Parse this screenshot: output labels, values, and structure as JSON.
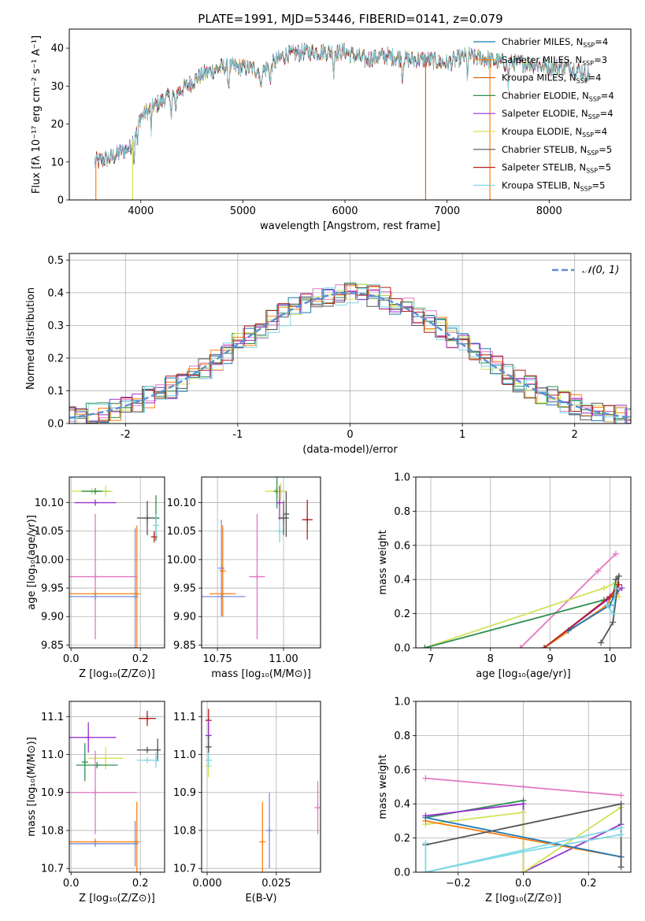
{
  "figure_title": "PLATE=1991, MJD=53446, FIBERID=0141, z=0.079",
  "colors": {
    "chabrier_miles": "#1f77b4",
    "salpeter_miles": "#ff7f0e",
    "kroupa_miles": "#d2691e",
    "chabrier_elodie": "#2f8f4f",
    "salpeter_elodie": "#9932cc",
    "kroupa_elodie": "#d4e157",
    "chabrier_stelib": "#555555",
    "salpeter_stelib": "#b22222",
    "kroupa_stelib": "#7fd8e6",
    "gauss": "#5b8fd4",
    "pink": "#e377c2",
    "blue_err": "#7b8fd8"
  },
  "chart_data": [
    {
      "id": "spectrum",
      "type": "line",
      "title": "PLATE=1991, MJD=53446, FIBERID=0141, z=0.079",
      "xlabel": "wavelength [Angstrom, rest frame]",
      "ylabel": "Flux [fλ 10⁻¹⁷ erg cm⁻² s⁻¹ A⁻¹]",
      "xlim": [
        3300,
        8800
      ],
      "ylim": [
        0,
        45
      ],
      "xticks": [
        4000,
        5000,
        6000,
        7000,
        8000
      ],
      "yticks": [
        0,
        10,
        20,
        30,
        40
      ],
      "legend_position": "top-right",
      "series": [
        {
          "name": "Chabrier MILES, N",
          "sub": "SSP",
          "suffix": "=4"
        },
        {
          "name": "Salpeter MILES, N",
          "sub": "SSP",
          "suffix": "=3"
        },
        {
          "name": "Kroupa MILES, N",
          "sub": "SSP",
          "suffix": "=4"
        },
        {
          "name": "Chabrier ELODIE, N",
          "sub": "SSP",
          "suffix": "=4"
        },
        {
          "name": "Salpeter ELODIE, N",
          "sub": "SSP",
          "suffix": "=4"
        },
        {
          "name": "Kroupa ELODIE, N",
          "sub": "SSP",
          "suffix": "=4"
        },
        {
          "name": "Chabrier STELIB, N",
          "sub": "SSP",
          "suffix": "=5"
        },
        {
          "name": "Salpeter STELIB, N",
          "sub": "SSP",
          "suffix": "=5"
        },
        {
          "name": "Kroupa STELIB, N",
          "sub": "SSP",
          "suffix": "=5"
        }
      ],
      "continuum": {
        "x": [
          3550,
          3700,
          3900,
          4000,
          4200,
          4400,
          4600,
          4800,
          5000,
          5200,
          5400,
          5600,
          5800,
          6000,
          6200,
          6400,
          6600,
          6800,
          7000,
          7200,
          7400,
          7600,
          7800,
          8000,
          8200,
          8400
        ],
        "y": [
          10,
          11,
          14,
          22,
          26,
          29,
          33,
          35,
          35,
          34,
          38,
          39,
          39,
          39,
          37,
          38,
          37,
          37,
          36,
          38,
          37,
          36,
          36,
          35,
          35,
          33
        ]
      },
      "spikes": [
        [
          3920,
          0
        ],
        [
          6790,
          0
        ],
        [
          7420,
          0
        ],
        [
          3550,
          0
        ]
      ]
    },
    {
      "id": "residuals",
      "type": "line",
      "xlabel": "(data-model)/error",
      "ylabel": "Normed distribution",
      "xlim": [
        -2.5,
        2.5
      ],
      "ylim": [
        0,
        0.52
      ],
      "xticks": [
        -2,
        -1,
        0,
        1,
        2
      ],
      "yticks": [
        0.0,
        0.1,
        0.2,
        0.3,
        0.4,
        0.5
      ],
      "legend_label": "𝒩(0, 1)",
      "legend_position": "top-right"
    },
    {
      "id": "age_vs_Z",
      "type": "scatter",
      "xlabel": "Z [log₁₀(Z/Z⊙)]",
      "ylabel": "age  [log₁₀(age/yr)]",
      "xlim": [
        -0.005,
        0.27
      ],
      "ylim": [
        9.845,
        10.145
      ],
      "xticks": [
        0.0,
        0.2
      ],
      "yticks": [
        9.85,
        9.9,
        9.95,
        10.0,
        10.05,
        10.1
      ],
      "points": [
        {
          "c": "kroupa_elodie",
          "x": 0.06,
          "y": 10.12,
          "xe": 0.06,
          "ye": 0.0
        },
        {
          "c": "chabrier_elodie",
          "x": 0.07,
          "y": 10.12,
          "xe": 0.04,
          "ye": 0.0
        },
        {
          "c": "salpeter_elodie",
          "x": 0.07,
          "y": 10.1,
          "xe": 0.06,
          "ye": 0.0
        },
        {
          "c": "kroupa_elodie",
          "x": 0.1,
          "y": 10.12,
          "xe": 0.0,
          "ye": 0.01
        },
        {
          "c": "chabrier_stelib",
          "x": 0.22,
          "y": 10.073,
          "xe": 0.03,
          "ye": 0.03
        },
        {
          "c": "chabrier_elodie",
          "x": 0.245,
          "y": 10.073,
          "xe": 0.01,
          "ye": 0.04
        },
        {
          "c": "salpeter_stelib",
          "x": 0.24,
          "y": 10.04,
          "xe": 0.0,
          "ye": 0.01
        },
        {
          "c": "kroupa_stelib",
          "x": 0.245,
          "y": 10.06,
          "xe": 0.0,
          "ye": 0.02
        },
        {
          "c": "pink",
          "x": 0.07,
          "y": 9.97,
          "xe": 0.12,
          "ye": 0.11
        },
        {
          "c": "salpeter_miles",
          "x": 0.07,
          "y": 9.94,
          "xe": 0.12,
          "ye": 0.0
        },
        {
          "c": "salpeter_miles",
          "x": 0.19,
          "y": 9.94,
          "xe": 0.0,
          "ye": 0.12
        },
        {
          "c": "blue_err",
          "x": 0.07,
          "y": 9.935,
          "xe": 0.12,
          "ye": 0.0
        },
        {
          "c": "blue_err",
          "x": 0.185,
          "y": 9.935,
          "xe": 0.0,
          "ye": 0.12
        }
      ]
    },
    {
      "id": "age_vs_mass",
      "type": "scatter",
      "xlabel": "mass [log₁₀(M/M⊙)]",
      "ylabel": "",
      "xlim": [
        10.69,
        11.14
      ],
      "ylim": [
        9.845,
        10.145
      ],
      "xticks": [
        10.75,
        11.0
      ],
      "yticks": [
        9.85,
        9.9,
        9.95,
        10.0,
        10.05,
        10.1
      ],
      "points": [
        {
          "c": "kroupa_elodie",
          "x": 10.97,
          "y": 10.12,
          "xe": 0.04,
          "ye": 0.0
        },
        {
          "c": "chabrier_elodie",
          "x": 10.975,
          "y": 10.12,
          "xe": 0.0,
          "ye": 0.03
        },
        {
          "c": "kroupa_elodie",
          "x": 10.99,
          "y": 10.12,
          "xe": 0.0,
          "ye": 0.015
        },
        {
          "c": "salpeter_elodie",
          "x": 10.985,
          "y": 10.1,
          "xe": 0.0,
          "ye": 0.03
        },
        {
          "c": "chabrier_stelib",
          "x": 11.0,
          "y": 10.073,
          "xe": 0.02,
          "ye": 0.03
        },
        {
          "c": "chabrier_stelib",
          "x": 11.01,
          "y": 10.08,
          "xe": 0.0,
          "ye": 0.04
        },
        {
          "c": "salpeter_stelib",
          "x": 11.09,
          "y": 10.07,
          "xe": 0.02,
          "ye": 0.035
        },
        {
          "c": "kroupa_stelib",
          "x": 10.985,
          "y": 10.05,
          "xe": 0.0,
          "ye": 0.02
        },
        {
          "c": "pink",
          "x": 10.9,
          "y": 9.97,
          "xe": 0.03,
          "ye": 0.11
        },
        {
          "c": "salpeter_miles",
          "x": 10.77,
          "y": 9.94,
          "xe": 0.05,
          "ye": 0.0
        },
        {
          "c": "salpeter_miles",
          "x": 10.77,
          "y": 9.98,
          "xe": 0.0,
          "ye": 0.08
        },
        {
          "c": "blue_err",
          "x": 10.765,
          "y": 9.935,
          "xe": 0.09,
          "ye": 0.0
        },
        {
          "c": "blue_err",
          "x": 10.765,
          "y": 9.985,
          "xe": 0.0,
          "ye": 0.085
        }
      ]
    },
    {
      "id": "mass_weight_vs_age",
      "type": "line",
      "xlabel": "age  [log₁₀(age/yr)]",
      "ylabel": "mass weight",
      "xlim": [
        6.75,
        10.35
      ],
      "ylim": [
        0,
        1.0
      ],
      "xticks": [
        7,
        8,
        9,
        10
      ],
      "yticks": [
        0.0,
        0.2,
        0.4,
        0.6,
        0.8,
        1.0
      ],
      "lines": [
        {
          "c": "pink",
          "x": [
            8.5,
            9.8,
            10.1
          ],
          "y": [
            0.0,
            0.45,
            0.55
          ]
        },
        {
          "c": "kroupa_elodie",
          "x": [
            6.9,
            9.9,
            10.1,
            10.15
          ],
          "y": [
            0.0,
            0.35,
            0.38,
            0.3
          ]
        },
        {
          "c": "chabrier_elodie",
          "x": [
            6.9,
            9.9,
            10.05,
            10.1
          ],
          "y": [
            0.0,
            0.28,
            0.3,
            0.4
          ]
        },
        {
          "c": "salpeter_elodie",
          "x": [
            8.9,
            9.95,
            10.1,
            10.2
          ],
          "y": [
            0.0,
            0.28,
            0.32,
            0.35
          ]
        },
        {
          "c": "salpeter_miles",
          "x": [
            8.9,
            9.95,
            10.1
          ],
          "y": [
            0.0,
            0.25,
            0.35
          ]
        },
        {
          "c": "chabrier_miles",
          "x": [
            9.3,
            10.0,
            10.1
          ],
          "y": [
            0.1,
            0.25,
            0.33
          ]
        },
        {
          "c": "chabrier_stelib",
          "x": [
            9.85,
            10.05,
            10.15,
            10.1
          ],
          "y": [
            0.03,
            0.15,
            0.42,
            0.4
          ]
        },
        {
          "c": "salpeter_stelib",
          "x": [
            8.9,
            10.0,
            10.15
          ],
          "y": [
            0.0,
            0.3,
            0.37
          ]
        },
        {
          "c": "kroupa_stelib",
          "x": [
            9.95,
            10.05,
            10.1
          ],
          "y": [
            0.25,
            0.2,
            0.35
          ]
        }
      ]
    },
    {
      "id": "mass_vs_Z",
      "type": "scatter",
      "xlabel": "Z [log₁₀(Z/Z⊙)]",
      "ylabel": "mass [log₁₀(M/M⊙)]",
      "xlim": [
        -0.005,
        0.27
      ],
      "ylim": [
        10.69,
        11.14
      ],
      "xticks": [
        0.0,
        0.2
      ],
      "yticks": [
        10.7,
        10.8,
        10.9,
        11.0,
        11.1
      ],
      "points": [
        {
          "c": "salpeter_stelib",
          "x": 0.22,
          "y": 11.095,
          "xe": 0.025,
          "ye": 0.02
        },
        {
          "c": "salpeter_elodie",
          "x": 0.05,
          "y": 11.045,
          "xe": 0.08,
          "ye": 0.04
        },
        {
          "c": "chabrier_stelib",
          "x": 0.22,
          "y": 11.012,
          "xe": 0.03,
          "ye": 0.0
        },
        {
          "c": "chabrier_stelib",
          "x": 0.25,
          "y": 11.012,
          "xe": 0.0,
          "ye": 0.03
        },
        {
          "c": "kroupa_elodie",
          "x": 0.1,
          "y": 10.99,
          "xe": 0.05,
          "ye": 0.03
        },
        {
          "c": "chabrier_elodie",
          "x": 0.04,
          "y": 10.98,
          "xe": 0.0,
          "ye": 0.05
        },
        {
          "c": "kroupa_stelib",
          "x": 0.22,
          "y": 10.985,
          "xe": 0.03,
          "ye": 0.0
        },
        {
          "c": "kroupa_stelib",
          "x": 0.245,
          "y": 10.985,
          "xe": 0.0,
          "ye": 0.02
        },
        {
          "c": "chabrier_elodie",
          "x": 0.075,
          "y": 10.972,
          "xe": 0.06,
          "ye": 0.0
        },
        {
          "c": "pink",
          "x": 0.07,
          "y": 10.9,
          "xe": 0.12,
          "ye": 0.11
        },
        {
          "c": "salpeter_miles",
          "x": 0.19,
          "y": 10.77,
          "xe": 0.0,
          "ye": 0.105
        },
        {
          "c": "salpeter_miles",
          "x": 0.07,
          "y": 10.77,
          "xe": 0.12,
          "ye": 0.0
        },
        {
          "c": "blue_err",
          "x": 0.185,
          "y": 10.765,
          "xe": 0.0,
          "ye": 0.06
        },
        {
          "c": "blue_err",
          "x": 0.07,
          "y": 10.765,
          "xe": 0.12,
          "ye": 0.0
        }
      ]
    },
    {
      "id": "mass_vs_ebv",
      "type": "scatter",
      "xlabel": "E(B-V)",
      "ylabel": "",
      "xlim": [
        -0.002,
        0.041
      ],
      "ylim": [
        10.69,
        11.14
      ],
      "xticks": [
        0.0,
        0.025
      ],
      "xtick_labels": [
        "0.000",
        "0.025"
      ],
      "yticks": [
        10.7,
        10.8,
        10.9,
        11.0,
        11.1
      ],
      "points": [
        {
          "c": "salpeter_stelib",
          "x": 0.0005,
          "y": 11.09,
          "xe": 0.0,
          "ye": 0.03
        },
        {
          "c": "salpeter_elodie",
          "x": 0.0005,
          "y": 11.05,
          "xe": 0.0,
          "ye": 0.04
        },
        {
          "c": "chabrier_stelib",
          "x": 0.0005,
          "y": 11.02,
          "xe": 0.0,
          "ye": 0.03
        },
        {
          "c": "kroupa_elodie",
          "x": 0.0005,
          "y": 10.97,
          "xe": 0.0,
          "ye": 0.03
        },
        {
          "c": "kroupa_stelib",
          "x": 0.0005,
          "y": 10.985,
          "xe": 0.0,
          "ye": 0.02
        },
        {
          "c": "salpeter_miles",
          "x": 0.02,
          "y": 10.77,
          "xe": 0.0,
          "ye": 0.105
        },
        {
          "c": "blue_err",
          "x": 0.0225,
          "y": 10.8,
          "xe": 0.0,
          "ye": 0.1
        },
        {
          "c": "pink",
          "x": 0.04,
          "y": 10.86,
          "xe": 0.0,
          "ye": 0.07
        }
      ]
    },
    {
      "id": "mass_weight_vs_Z",
      "type": "line",
      "xlabel": "Z [log₁₀(Z/Z⊙)]",
      "ylabel": "mass weight",
      "xlim": [
        -0.33,
        0.33
      ],
      "ylim": [
        0,
        1.0
      ],
      "xticks": [
        -0.2,
        0.0,
        0.2
      ],
      "xtick_labels": [
        "−0.2",
        "0.0",
        "0.2"
      ],
      "yticks": [
        0.0,
        0.2,
        0.4,
        0.6,
        0.8,
        1.0
      ],
      "lines": [
        {
          "c": "pink",
          "x": [
            -0.3,
            0.0,
            0.3
          ],
          "y": [
            0.55,
            0.5,
            0.45
          ]
        },
        {
          "c": "chabrier_elodie",
          "x": [
            -0.3,
            0.0,
            0.0
          ],
          "y": [
            0.32,
            0.42,
            0.0
          ]
        },
        {
          "c": "salpeter_elodie",
          "x": [
            -0.3,
            0.0,
            0.0,
            0.3
          ],
          "y": [
            0.33,
            0.4,
            0.0,
            0.28
          ]
        },
        {
          "c": "kroupa_elodie",
          "x": [
            -0.3,
            0.0,
            0.0,
            0.3
          ],
          "y": [
            0.28,
            0.35,
            0.0,
            0.38
          ]
        },
        {
          "c": "salpeter_miles",
          "x": [
            -0.3,
            0.3
          ],
          "y": [
            0.3,
            0.09
          ]
        },
        {
          "c": "chabrier_miles",
          "x": [
            -0.3,
            0.3
          ],
          "y": [
            0.32,
            0.09
          ]
        },
        {
          "c": "chabrier_stelib",
          "x": [
            -0.3,
            0.3,
            0.3
          ],
          "y": [
            0.16,
            0.4,
            0.03
          ]
        },
        {
          "c": "kroupa_stelib",
          "x": [
            -0.3,
            -0.3,
            0.0,
            0.3
          ],
          "y": [
            0.17,
            0.0,
            0.12,
            0.22
          ]
        },
        {
          "c": "kroupa_stelib",
          "x": [
            -0.3,
            0.3
          ],
          "y": [
            0.0,
            0.26
          ]
        }
      ]
    }
  ]
}
